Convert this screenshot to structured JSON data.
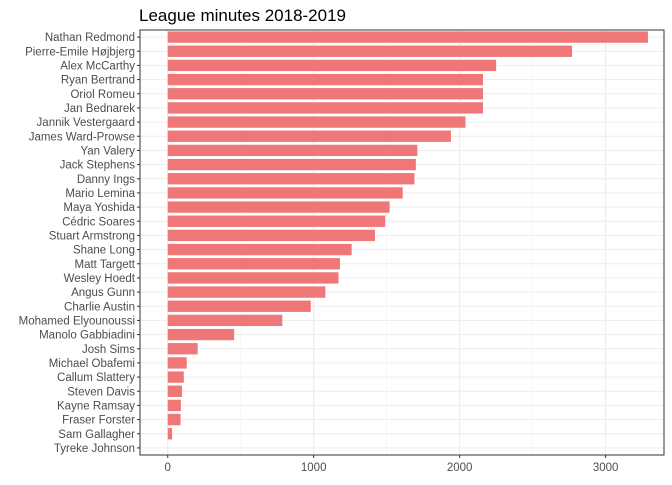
{
  "chart_data": {
    "type": "bar",
    "orientation": "horizontal",
    "title": "League minutes 2018-2019",
    "xlabel": "",
    "ylabel": "",
    "categories": [
      "Nathan Redmond",
      "Pierre-Emile Højbjerg",
      "Alex McCarthy",
      "Ryan Bertrand",
      "Oriol Romeu",
      "Jan Bednarek",
      "Jannik Vestergaard",
      "James Ward-Prowse",
      "Yan Valery",
      "Jack Stephens",
      "Danny Ings",
      "Mario Lemina",
      "Maya Yoshida",
      "Cédric Soares",
      "Stuart Armstrong",
      "Shane Long",
      "Matt Targett",
      "Wesley Hoedt",
      "Angus Gunn",
      "Charlie Austin",
      "Mohamed Elyounoussi",
      "Manolo Gabbiadini",
      "Josh Sims",
      "Michael Obafemi",
      "Callum Slattery",
      "Steven Davis",
      "Kayne Ramsay",
      "Fraser Forster",
      "Sam Gallagher",
      "Tyreke Johnson"
    ],
    "values": [
      3290,
      2770,
      2250,
      2160,
      2160,
      2160,
      2040,
      1940,
      1710,
      1700,
      1690,
      1610,
      1520,
      1490,
      1420,
      1260,
      1180,
      1170,
      1080,
      980,
      785,
      455,
      205,
      130,
      110,
      98,
      90,
      88,
      30,
      0
    ],
    "xlim": [
      -190,
      3400
    ],
    "xticks": [
      0,
      1000,
      2000,
      3000
    ],
    "xtick_labels": [
      "0",
      "1000",
      "2000",
      "3000"
    ],
    "bar_color": "#F07777",
    "grid": true,
    "legend": "none"
  }
}
